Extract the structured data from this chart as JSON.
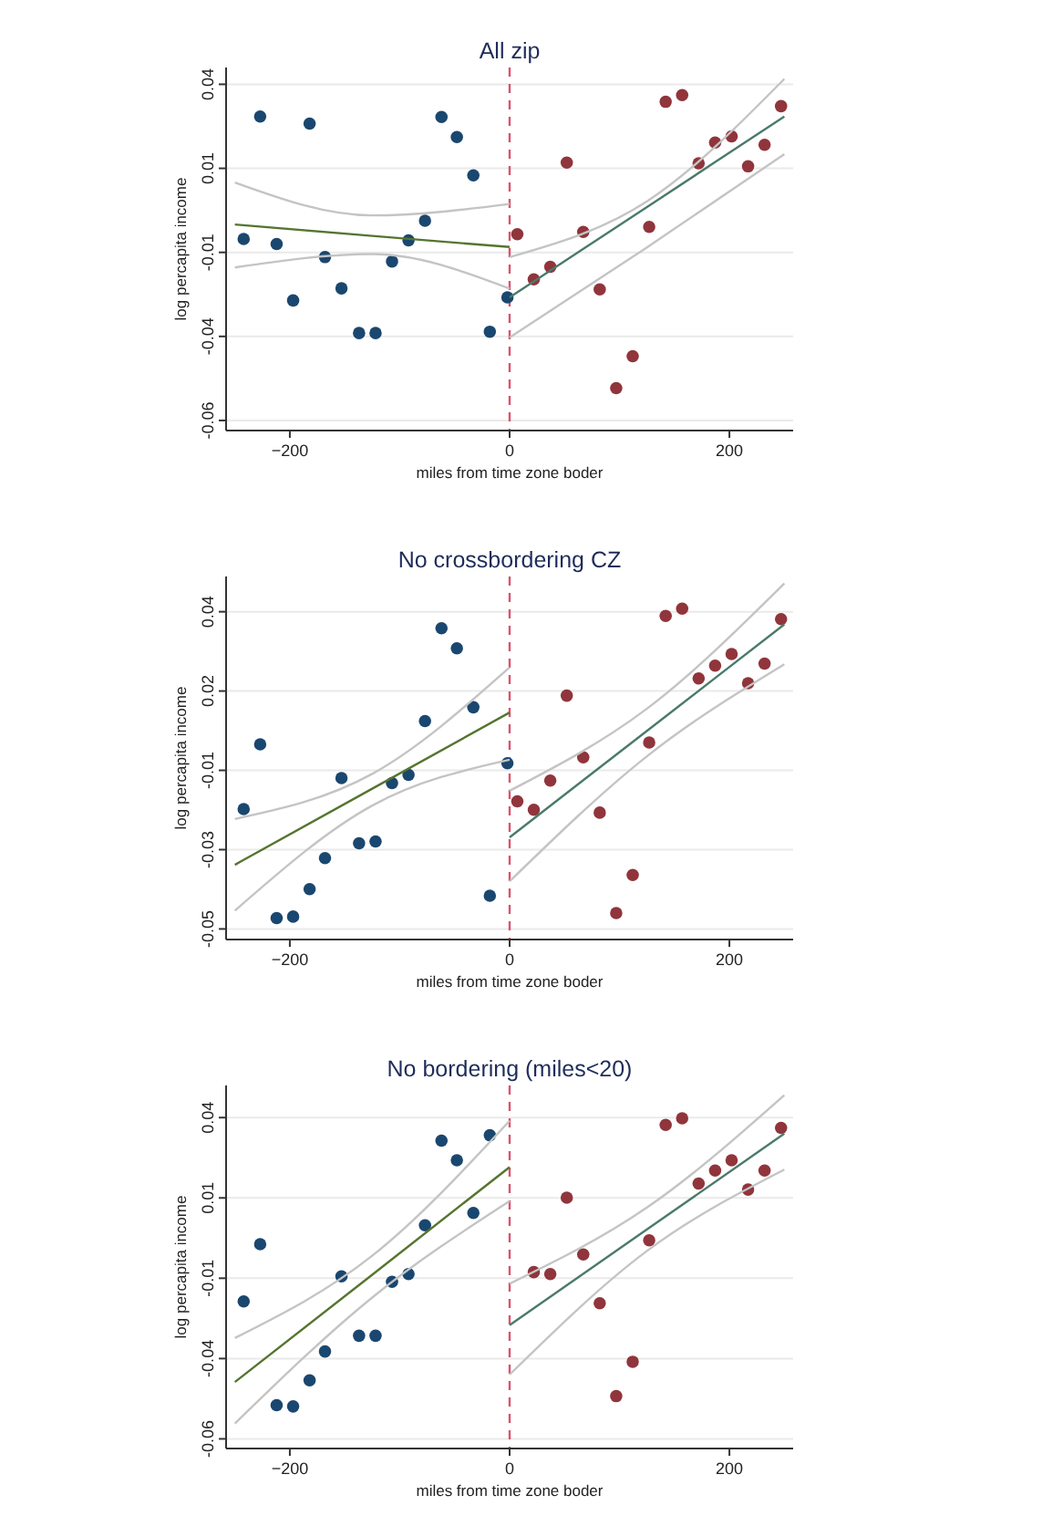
{
  "chart_data": [
    {
      "type": "scatter",
      "title": "All zip",
      "xlabel": "miles from time zone boder",
      "ylabel": "log percapita income",
      "xlim": [
        -258,
        258
      ],
      "ylim": [
        -0.063,
        0.045
      ],
      "xticks": [
        -200,
        0,
        200
      ],
      "yticks": [
        0.04,
        {
          "value": 0.015,
          "label": "0.01"
        },
        -0.01,
        {
          "value": -0.035,
          "label": "-0.04"
        },
        -0.06
      ],
      "grid": "y",
      "marker": "circle",
      "ref_lines": [
        {
          "axis": "x",
          "value": 0,
          "color": "#d9536f",
          "line_style": "dashed"
        }
      ],
      "series": [
        {
          "color": "#1a476f",
          "x": [
            -242,
            -227,
            -212,
            -197,
            -182,
            -168,
            -153,
            -137,
            -122,
            -107,
            -92,
            -77,
            -62,
            -48,
            -33,
            -18,
            -2
          ],
          "values": [
            -0.006,
            0.0304,
            -0.0075,
            -0.0243,
            0.0283,
            -0.0114,
            -0.0207,
            -0.034,
            -0.034,
            -0.0127,
            -0.0064,
            -0.0006,
            0.0303,
            0.0243,
            0.0129,
            -0.0336,
            -0.0234
          ]
        },
        {
          "color": "#90353b",
          "x": [
            7,
            22,
            37,
            52,
            67,
            82,
            97,
            112,
            127,
            142,
            157,
            172,
            187,
            202,
            217,
            232,
            247
          ],
          "values": [
            -0.0046,
            -0.018,
            -0.0143,
            0.0167,
            -0.0039,
            -0.021,
            -0.0504,
            -0.0409,
            -0.0024,
            0.0348,
            0.0368,
            0.0165,
            0.0227,
            0.0245,
            0.0156,
            0.022,
            0.0335
          ]
        },
        {
          "type": "line",
          "marker": "none",
          "color": "#55752f",
          "x": [
            -250,
            -125,
            0
          ],
          "values": [
            -0.0017,
            -0.0051,
            -0.0084
          ]
        },
        {
          "type": "line",
          "marker": "none",
          "color": "#c4c4c4",
          "x": [
            -250,
            -125,
            0
          ],
          "values": [
            -0.0145,
            -0.0105,
            -0.0208
          ]
        },
        {
          "type": "line",
          "marker": "none",
          "color": "#c4c4c4",
          "x": [
            -250,
            -125,
            0
          ],
          "values": [
            0.0108,
            0.001,
            0.0044
          ]
        },
        {
          "type": "line",
          "marker": "none",
          "color": "#4a7a6a",
          "x": [
            0,
            125,
            250
          ],
          "values": [
            -0.0234,
            0.0035,
            0.0304
          ]
        },
        {
          "type": "line",
          "marker": "none",
          "color": "#c4c4c4",
          "x": [
            0,
            125,
            250
          ],
          "values": [
            -0.0353,
            -0.0085,
            0.0192
          ]
        },
        {
          "type": "line",
          "marker": "none",
          "color": "#c4c4c4",
          "x": [
            0,
            125,
            250
          ],
          "values": [
            -0.0114,
            0.0052,
            0.0416
          ]
        }
      ]
    },
    {
      "type": "scatter",
      "title": "No crossbordering CZ",
      "xlabel": "miles from time zone boder",
      "ylabel": "log percapita income",
      "xlim": [
        -258,
        258
      ],
      "ylim": [
        -0.053,
        0.05
      ],
      "xticks": [
        -200,
        0,
        200
      ],
      "yticks": [
        0.04,
        {
          "value": 0.0175,
          "label": "0.02"
        },
        {
          "value": -0.005,
          "label": "-0.01"
        },
        {
          "value": -0.0275,
          "label": "-0.03"
        },
        -0.05
      ],
      "grid": "y",
      "marker": "circle",
      "ref_lines": [
        {
          "axis": "x",
          "value": 0,
          "color": "#d9536f",
          "line_style": "dashed"
        }
      ],
      "series": [
        {
          "color": "#1a476f",
          "x": [
            -242,
            -227,
            -212,
            -197,
            -182,
            -168,
            -153,
            -137,
            -122,
            -107,
            -92,
            -77,
            -62,
            -48,
            -33,
            -18,
            -2
          ],
          "values": [
            -0.016,
            0.0024,
            -0.0469,
            -0.0465,
            -0.0387,
            -0.0299,
            -0.0072,
            -0.0257,
            -0.0252,
            -0.0086,
            -0.0063,
            0.009,
            0.0353,
            0.0296,
            0.0129,
            -0.0406,
            -0.003
          ]
        },
        {
          "color": "#90353b",
          "x": [
            7,
            22,
            37,
            52,
            67,
            82,
            97,
            112,
            127,
            142,
            157,
            172,
            187,
            202,
            217,
            232,
            247
          ],
          "values": [
            -0.0138,
            -0.0162,
            -0.0079,
            0.0162,
            -0.0013,
            -0.017,
            -0.0455,
            -0.0347,
            0.0029,
            0.0388,
            0.0409,
            0.0211,
            0.0247,
            0.028,
            0.0197,
            0.0253,
            0.0379
          ]
        },
        {
          "type": "line",
          "marker": "none",
          "color": "#55752f",
          "x": [
            -250,
            -125,
            0
          ],
          "values": [
            -0.0318,
            -0.0102,
            0.0114
          ]
        },
        {
          "type": "line",
          "marker": "none",
          "color": "#c4c4c4",
          "x": [
            -250,
            -125,
            0
          ],
          "values": [
            -0.0448,
            -0.015,
            -0.002
          ]
        },
        {
          "type": "line",
          "marker": "none",
          "color": "#c4c4c4",
          "x": [
            -250,
            -125,
            0
          ],
          "values": [
            -0.0188,
            -0.006,
            0.0242
          ]
        },
        {
          "type": "line",
          "marker": "none",
          "color": "#4a7a6a",
          "x": [
            0,
            125,
            250
          ],
          "values": [
            -0.024,
            0.0062,
            0.0364
          ]
        },
        {
          "type": "line",
          "marker": "none",
          "color": "#c4c4c4",
          "x": [
            0,
            125,
            250
          ],
          "values": [
            -0.0365,
            -0.001,
            0.0251
          ]
        },
        {
          "type": "line",
          "marker": "none",
          "color": "#c4c4c4",
          "x": [
            0,
            125,
            250
          ],
          "values": [
            -0.0108,
            0.0125,
            0.048
          ]
        }
      ]
    },
    {
      "type": "scatter",
      "title": "No bordering (miles<20)",
      "xlabel": "miles from time zone boder",
      "ylabel": "log percapita income",
      "xlim": [
        -258,
        258
      ],
      "ylim": [
        -0.063,
        0.05
      ],
      "xticks": [
        -200,
        0,
        200
      ],
      "yticks": [
        0.04,
        {
          "value": 0.015,
          "label": "0.01"
        },
        -0.01,
        {
          "value": -0.035,
          "label": "-0.04"
        },
        -0.06
      ],
      "grid": "y",
      "marker": "circle",
      "ref_lines": [
        {
          "axis": "x",
          "value": 0,
          "color": "#d9536f",
          "line_style": "dashed"
        }
      ],
      "series": [
        {
          "color": "#1a476f",
          "x": [
            -242,
            -227,
            -212,
            -197,
            -182,
            -168,
            -153,
            -137,
            -122,
            -107,
            -92,
            -77,
            -62,
            -48,
            -33,
            -18
          ],
          "values": [
            -0.0172,
            0.0006,
            -0.0495,
            -0.0499,
            -0.0418,
            -0.0328,
            -0.0094,
            -0.0279,
            -0.0279,
            -0.0111,
            -0.0087,
            0.0065,
            0.0328,
            0.0267,
            0.0103,
            0.0345
          ]
        },
        {
          "color": "#90353b",
          "x": [
            22,
            37,
            52,
            67,
            82,
            97,
            112,
            127,
            142,
            157,
            172,
            187,
            202,
            217,
            232,
            247
          ],
          "values": [
            -0.0081,
            -0.0087,
            0.0151,
            -0.0026,
            -0.0178,
            -0.0467,
            -0.036,
            0.0018,
            0.0377,
            0.0398,
            0.0195,
            0.0235,
            0.0267,
            0.0176,
            0.0235,
            0.0368
          ]
        },
        {
          "type": "line",
          "marker": "none",
          "color": "#55752f",
          "x": [
            -250,
            -125,
            0
          ],
          "values": [
            -0.0423,
            -0.0089,
            0.0246
          ]
        },
        {
          "type": "line",
          "marker": "none",
          "color": "#c4c4c4",
          "x": [
            -250,
            -125,
            0
          ],
          "values": [
            -0.0552,
            -0.016,
            0.014
          ]
        },
        {
          "type": "line",
          "marker": "none",
          "color": "#c4c4c4",
          "x": [
            -250,
            -125,
            0
          ],
          "values": [
            -0.0286,
            -0.003,
            0.039
          ]
        },
        {
          "type": "line",
          "marker": "none",
          "color": "#4a7a6a",
          "x": [
            0,
            125,
            250
          ],
          "values": [
            -0.0246,
            0.0052,
            0.035
          ]
        },
        {
          "type": "line",
          "marker": "none",
          "color": "#c4c4c4",
          "x": [
            0,
            125,
            250
          ],
          "values": [
            -0.04,
            -0.0015,
            0.0238
          ]
        },
        {
          "type": "line",
          "marker": "none",
          "color": "#c4c4c4",
          "x": [
            0,
            125,
            250
          ],
          "values": [
            -0.0117,
            0.012,
            0.047
          ]
        }
      ]
    }
  ]
}
